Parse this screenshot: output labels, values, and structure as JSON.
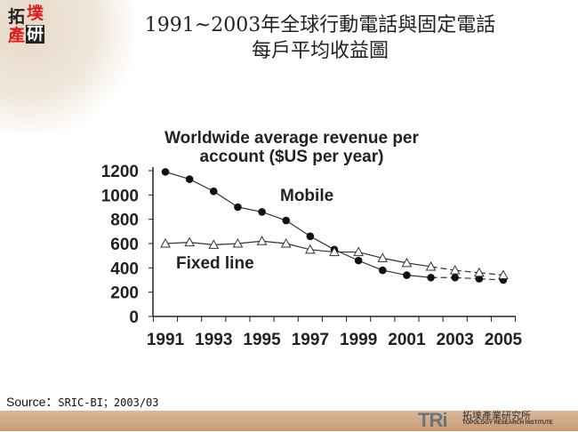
{
  "header": {
    "title_line1": "1991~2003年全球行動電話與固定電話",
    "title_line2": "每戶平均收益圖",
    "logo_chars": [
      "拓",
      "墣",
      "產",
      "研"
    ]
  },
  "chart_data": {
    "type": "line",
    "title": "Worldwide average revenue per account ($US per year)",
    "title_line1": "Worldwide average revenue per",
    "title_line2": "account ($US per year)",
    "xlabel": "",
    "ylabel": "",
    "x": [
      1991,
      1992,
      1993,
      1994,
      1995,
      1996,
      1997,
      1998,
      1999,
      2000,
      2001,
      2002,
      2003,
      2004,
      2005
    ],
    "xticks": [
      "1991",
      "1993",
      "1995",
      "1997",
      "1999",
      "2001",
      "2003",
      "2005"
    ],
    "yticks": [
      "0",
      "200",
      "400",
      "600",
      "800",
      "1000",
      "1200"
    ],
    "ylim": [
      0,
      1200
    ],
    "grid": false,
    "dashed_from": 2002,
    "series": [
      {
        "name": "Mobile",
        "marker": "filled-circle",
        "values": [
          1190,
          1130,
          1030,
          900,
          860,
          790,
          660,
          550,
          460,
          380,
          340,
          320,
          320,
          310,
          300
        ]
      },
      {
        "name": "Fixed line",
        "marker": "open-triangle",
        "values": [
          600,
          610,
          590,
          600,
          620,
          600,
          550,
          530,
          530,
          480,
          440,
          410,
          380,
          360,
          340
        ]
      }
    ]
  },
  "source": {
    "label": "Source：",
    "value": "SRIC-BI；2003/03"
  },
  "footer": {
    "logo_mark": "TRi",
    "logo_cn": "拓墣產業研究所",
    "logo_en": "TOPOLOGY RESEARCH INSTITUTE",
    "bar_color": "#c89a76"
  }
}
